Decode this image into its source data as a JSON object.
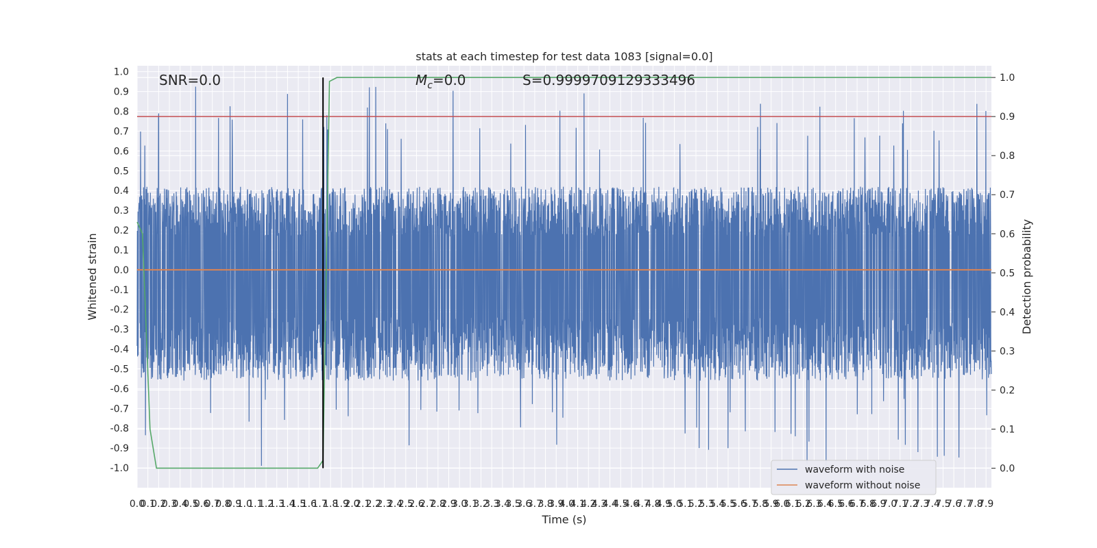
{
  "chart_data": {
    "type": "line",
    "title": "stats at each timestep for test data 1083 [signal=0.0]",
    "xlabel": "Time (s)",
    "ylabel": "Whitened strain",
    "y2label": "Detection probability",
    "xlim": [
      0.0,
      7.95
    ],
    "ylim": [
      -1.1,
      1.03
    ],
    "y2lim": [
      -0.05,
      1.03
    ],
    "grid": true,
    "x_ticks": [
      "0.0",
      "0.1",
      "0.2",
      "0.3",
      "0.4",
      "0.5",
      "0.6",
      "0.7",
      "0.8",
      "0.9",
      "1.0",
      "1.1",
      "1.2",
      "1.3",
      "1.4",
      "1.5",
      "1.6",
      "1.7",
      "1.8",
      "1.9",
      "2.0",
      "2.1",
      "2.2",
      "2.3",
      "2.4",
      "2.5",
      "2.6",
      "2.7",
      "2.8",
      "2.9",
      "3.0",
      "3.1",
      "3.2",
      "3.3",
      "3.4",
      "3.5",
      "3.6",
      "3.7",
      "3.8",
      "3.9",
      "4.0",
      "4.1",
      "4.2",
      "4.3",
      "4.4",
      "4.5",
      "4.6",
      "4.7",
      "4.8",
      "4.9",
      "5.0",
      "5.1",
      "5.2",
      "5.3",
      "5.4",
      "5.5",
      "5.6",
      "5.7",
      "5.8",
      "5.9",
      "6.0",
      "6.1",
      "6.2",
      "6.3",
      "6.4",
      "6.5",
      "6.6",
      "6.7",
      "6.8",
      "6.9",
      "7.0",
      "7.1",
      "7.2",
      "7.3",
      "7.4",
      "7.5",
      "7.6",
      "7.7",
      "7.8",
      "7.9"
    ],
    "y_ticks": [
      "1.0",
      "0.9",
      "0.8",
      "0.7",
      "0.6",
      "0.5",
      "0.4",
      "0.3",
      "0.2",
      "0.1",
      "0.0",
      "-0.1",
      "-0.2",
      "-0.3",
      "-0.4",
      "-0.5",
      "-0.6",
      "-0.7",
      "-0.8",
      "-0.9",
      "-1.0"
    ],
    "y2_ticks": [
      "1.0",
      "0.9",
      "0.8",
      "0.7",
      "0.6",
      "0.5",
      "0.4",
      "0.3",
      "0.2",
      "0.1",
      "0.0"
    ],
    "annotations": {
      "snr": "SNR=0.0",
      "mc_symbol": "M",
      "mc_sub": "c",
      "mc_value": "=0.0",
      "s": "S=0.9999709129333496"
    },
    "series": [
      {
        "name": "waveform with noise",
        "color": "#4c72b0",
        "envelope_upper": 0.28,
        "envelope_lower": -0.4,
        "peak_max": 0.93,
        "peak_min": -1.0
      },
      {
        "name": "waveform without noise",
        "color": "#dd8452",
        "values_constant": 0.0
      },
      {
        "color": "#55a868",
        "axis": "right",
        "x": [
          0.0,
          0.05,
          0.12,
          0.18,
          1.68,
          1.73,
          1.79,
          1.86,
          7.95
        ],
        "y": [
          0.63,
          0.6,
          0.1,
          0.0,
          0.0,
          0.02,
          0.99,
          1.0,
          1.0
        ]
      }
    ],
    "threshold": {
      "color": "#c44e52",
      "value": 0.9,
      "axis": "right"
    },
    "marker_line": {
      "color": "#000000",
      "x": 1.73
    },
    "legend_position": "lower right"
  }
}
